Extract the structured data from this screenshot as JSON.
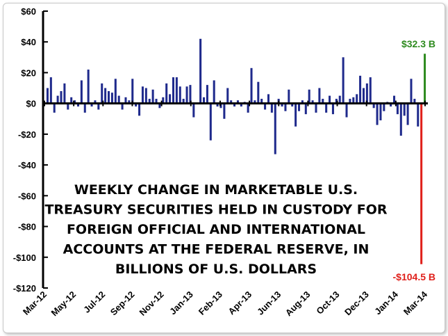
{
  "chart_data": {
    "type": "bar",
    "title_lines": [
      "WEEKLY CHANGE IN MARKETABLE U.S.",
      "TREASURY SECURITIES HELD IN CUSTODY FOR",
      "FOREIGN OFFICIAL AND INTERNATIONAL",
      "ACCOUNTS AT THE FEDERAL RESERVE, IN",
      "BILLIONS OF U.S. DOLLARS"
    ],
    "ylim": [
      -120,
      60
    ],
    "yticks": [
      60,
      40,
      20,
      0,
      -20,
      -40,
      -60,
      -80,
      -100,
      -120
    ],
    "ytick_labels": [
      "$60",
      "$40",
      "$20",
      "$0",
      "-$20",
      "-$40",
      "-$60",
      "-$80",
      "-$100",
      "-$120"
    ],
    "xtick_labels": [
      "Mar-12",
      "May-12",
      "Jul-12",
      "Sep-12",
      "Nov-12",
      "Jan-13",
      "Feb-13",
      "Apr-13",
      "Jun-13",
      "Aug-13",
      "Oct-13",
      "Dec-13",
      "Jan-14",
      "Mar-14"
    ],
    "colors": {
      "bars": "#1f2a8c",
      "positive_highlight": "#2e8b1f",
      "negative_highlight": "#e0201b"
    },
    "values": [
      10,
      17,
      -6,
      5,
      8,
      13,
      -4,
      4,
      2,
      -2,
      15,
      -6,
      22,
      -2,
      2,
      -4,
      13,
      10,
      8,
      7,
      16,
      5,
      -4,
      4,
      2,
      16,
      -2,
      -8,
      11,
      10,
      3,
      9,
      3,
      -3,
      4,
      13,
      6,
      17,
      17,
      11,
      3,
      11,
      12,
      -9,
      0,
      42,
      4,
      12,
      -24,
      15,
      -2,
      -3,
      -10,
      10,
      2,
      -2,
      2,
      -2,
      1,
      -6,
      23,
      2,
      14,
      3,
      -4,
      6,
      -6,
      -33,
      3,
      -2,
      -5,
      9,
      -2,
      -15,
      -5,
      2,
      -7,
      9,
      2,
      -6,
      10,
      3,
      -6,
      5,
      -7,
      3,
      5,
      30,
      -9,
      3,
      4,
      6,
      18,
      10,
      13,
      17,
      -3,
      -14,
      -11,
      -5,
      1,
      -2,
      5,
      -7,
      -21,
      -8,
      -14,
      16,
      3,
      -15,
      -104.5,
      32.3
    ],
    "highlights": [
      {
        "label": "$32.3 B",
        "value": 32.3,
        "color": "#2e8b1f"
      },
      {
        "label": "-$104.5 B",
        "value": -104.5,
        "color": "#e0201b"
      }
    ]
  }
}
